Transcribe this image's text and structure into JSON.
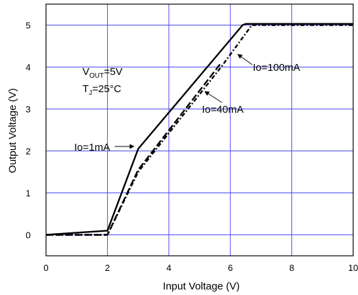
{
  "chart_data": {
    "type": "line",
    "title": "",
    "xlabel": "Input Voltage (V)",
    "ylabel": "Output Voltage (V)",
    "xlim": [
      0,
      10
    ],
    "ylim": [
      -0.5,
      5.5
    ],
    "x_ticks": [
      0,
      2,
      4,
      6,
      8,
      10
    ],
    "y_ticks": [
      0,
      1,
      2,
      3,
      4,
      5
    ],
    "x_tick_labels": [
      "0",
      "2",
      "4",
      "6",
      "8",
      "10"
    ],
    "y_tick_labels": [
      "0",
      "1",
      "2",
      "3",
      "4",
      "5"
    ],
    "grid": true,
    "series": [
      {
        "name": "Io=1mA",
        "style": "solid",
        "x": [
          0,
          2,
          3,
          6.4,
          6.5,
          10
        ],
        "y": [
          0,
          0.1,
          2.05,
          5.0,
          5.03,
          5.03
        ]
      },
      {
        "name": "Io=40mA",
        "style": "dashed",
        "x": [
          0,
          2,
          3,
          5.7
        ],
        "y": [
          0,
          0,
          1.55,
          4.1
        ]
      },
      {
        "name": "Io=100mA",
        "style": "dash-dot",
        "x": [
          0,
          2,
          3,
          5.7,
          6.7,
          10
        ],
        "y": [
          0,
          0,
          1.5,
          4.0,
          5.0,
          5.0
        ]
      }
    ],
    "annotations": {
      "conditions_line1_main": "V",
      "conditions_line1_sub": "OUT",
      "conditions_line1_rest": "=5V",
      "conditions_line2_main": "T",
      "conditions_line2_sub": "J",
      "conditions_line2_rest": "=25",
      "conditions_line2_unit": "°C",
      "label_1mA": "Io=1mA",
      "label_40mA": "Io=40mA",
      "label_100mA": "Io=100mA"
    },
    "colors": {
      "grid": "#4a4af0",
      "lines": "#000000",
      "frame": "#000000"
    }
  }
}
